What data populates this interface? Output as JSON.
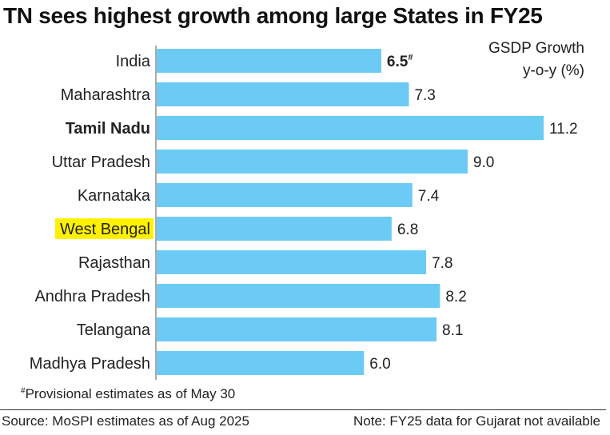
{
  "title": "TN sees highest growth among large States in FY25",
  "unit_label": [
    "GSDP Growth",
    "y-o-y (%)"
  ],
  "footnote": "Provisional estimates as of May 30",
  "footnote_mark": "#",
  "source": "Source: MoSPI estimates as of Aug 2025",
  "note": "Note: FY25 data for Gujarat not available",
  "colors": {
    "bar": "#6ccbf5",
    "highlight": "#fff200",
    "text": "#222222"
  },
  "chart_data": {
    "type": "bar",
    "orientation": "horizontal",
    "title": "TN sees highest growth among large States in FY25",
    "xlabel": "GSDP Growth y-o-y (%)",
    "ylabel": "",
    "categories": [
      "India",
      "Maharashtra",
      "Tamil Nadu",
      "Uttar Pradesh",
      "Karnataka",
      "West Bengal",
      "Rajasthan",
      "Andhra Pradesh",
      "Telangana",
      "Madhya Pradesh"
    ],
    "values": [
      6.5,
      7.3,
      11.2,
      9.0,
      7.4,
      6.8,
      7.8,
      8.2,
      8.1,
      6.0
    ],
    "value_labels": [
      "6.5",
      "7.3",
      "11.2",
      "9.0",
      "7.4",
      "6.8",
      "7.8",
      "8.2",
      "8.1",
      "6.0"
    ],
    "label_marks": [
      "#",
      "",
      "",
      "",
      "",
      "",
      "",
      "",
      "",
      ""
    ],
    "bold_categories": [
      "Tamil Nadu"
    ],
    "bold_values": [
      "India"
    ],
    "highlighted_categories": [
      "West Bengal"
    ],
    "xlim": [
      0,
      11.2
    ],
    "grid": false,
    "legend": "none"
  }
}
